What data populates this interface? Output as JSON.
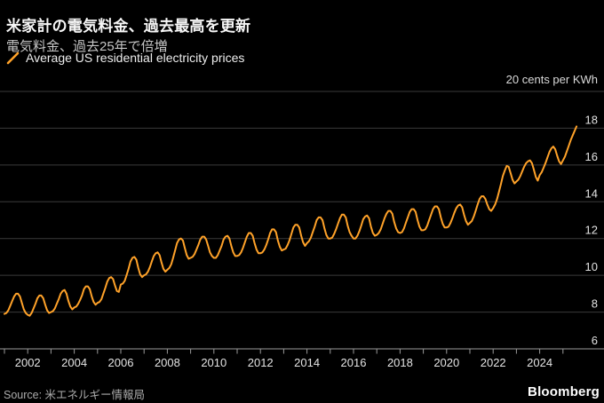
{
  "header": {
    "title": "米家計の電気料金、過去最高を更新",
    "subtitle": "電気料金、過去25年で倍増"
  },
  "legend": {
    "label": "Average US residential electricity prices"
  },
  "footer": {
    "source": "Source: 米エネルギー情報局",
    "brand": "Bloomberg"
  },
  "colors": {
    "background": "#000000",
    "line": "#FFA229",
    "grid": "#3a3a3a",
    "axis": "#9a9a9a",
    "tick_label": "#e3e3e3"
  },
  "chart_data": {
    "type": "line",
    "title": "米家計の電気料金、過去最高を更新",
    "subtitle": "電気料金、過去25年で倍増",
    "unit_label": "20 cents per KWh",
    "ylabel": "cents per KWh",
    "ylim": [
      6,
      20
    ],
    "yticks": [
      20,
      18,
      16,
      14,
      12,
      10,
      8,
      6
    ],
    "x_start_year": 2001,
    "x_end": 2025.67,
    "xticks_minor": {
      "from": 2001,
      "to": 2025,
      "step": 1
    },
    "xtick_labels": [
      "2002",
      "2004",
      "2006",
      "2008",
      "2010",
      "2012",
      "2014",
      "2016",
      "2018",
      "2020",
      "2022",
      "2024"
    ],
    "grid": "horizontal",
    "legend_position": "top-left",
    "series": [
      {
        "name": "Average US residential electricity prices",
        "color": "#FFA229",
        "frequency": "monthly",
        "start_year": 2001,
        "monthly_values": [
          [
            7.9,
            7.95,
            8.1,
            8.35,
            8.6,
            8.85,
            9.0,
            9.0,
            8.85,
            8.5,
            8.15,
            7.95
          ],
          [
            7.85,
            7.8,
            7.95,
            8.2,
            8.45,
            8.75,
            8.9,
            8.9,
            8.75,
            8.4,
            8.1,
            7.95
          ],
          [
            8.0,
            8.05,
            8.2,
            8.45,
            8.7,
            9.0,
            9.15,
            9.2,
            9.0,
            8.6,
            8.3,
            8.15
          ],
          [
            8.25,
            8.3,
            8.45,
            8.65,
            8.9,
            9.25,
            9.4,
            9.4,
            9.25,
            8.85,
            8.55,
            8.4
          ],
          [
            8.5,
            8.55,
            8.7,
            9.0,
            9.3,
            9.65,
            9.85,
            9.9,
            9.8,
            9.45,
            9.15,
            9.1
          ],
          [
            9.5,
            9.55,
            9.7,
            10.0,
            10.35,
            10.75,
            10.95,
            11.0,
            10.85,
            10.4,
            10.05,
            9.9
          ],
          [
            10.0,
            10.05,
            10.2,
            10.45,
            10.75,
            11.05,
            11.2,
            11.25,
            11.1,
            10.7,
            10.35,
            10.2
          ],
          [
            10.3,
            10.4,
            10.6,
            10.95,
            11.35,
            11.75,
            11.95,
            12.0,
            11.9,
            11.5,
            11.1,
            10.9
          ],
          [
            10.95,
            11.0,
            11.15,
            11.4,
            11.65,
            11.95,
            12.1,
            12.1,
            11.95,
            11.6,
            11.25,
            11.05
          ],
          [
            10.95,
            10.95,
            11.1,
            11.35,
            11.6,
            11.95,
            12.1,
            12.15,
            12.0,
            11.6,
            11.25,
            11.05
          ],
          [
            11.05,
            11.1,
            11.25,
            11.5,
            11.8,
            12.1,
            12.3,
            12.3,
            12.15,
            11.75,
            11.4,
            11.2
          ],
          [
            11.2,
            11.25,
            11.4,
            11.65,
            11.95,
            12.3,
            12.5,
            12.5,
            12.35,
            11.9,
            11.55,
            11.35
          ],
          [
            11.4,
            11.45,
            11.65,
            11.9,
            12.25,
            12.6,
            12.75,
            12.75,
            12.6,
            12.15,
            11.8,
            11.6
          ],
          [
            11.75,
            11.85,
            12.05,
            12.35,
            12.65,
            13.0,
            13.15,
            13.15,
            13.0,
            12.55,
            12.2,
            12.0
          ],
          [
            12.0,
            12.05,
            12.25,
            12.5,
            12.8,
            13.1,
            13.3,
            13.3,
            13.15,
            12.7,
            12.35,
            12.15
          ],
          [
            12.0,
            12.0,
            12.15,
            12.4,
            12.7,
            13.05,
            13.2,
            13.25,
            13.1,
            12.65,
            12.3,
            12.15
          ],
          [
            12.2,
            12.3,
            12.5,
            12.8,
            13.1,
            13.35,
            13.5,
            13.5,
            13.35,
            12.9,
            12.55,
            12.35
          ],
          [
            12.3,
            12.35,
            12.55,
            12.85,
            13.15,
            13.45,
            13.6,
            13.6,
            13.45,
            13.0,
            12.65,
            12.45
          ],
          [
            12.45,
            12.5,
            12.7,
            13.0,
            13.3,
            13.6,
            13.75,
            13.75,
            13.6,
            13.15,
            12.8,
            12.6
          ],
          [
            12.6,
            12.65,
            12.85,
            13.1,
            13.4,
            13.65,
            13.8,
            13.85,
            13.7,
            13.3,
            12.95,
            12.75
          ],
          [
            12.85,
            12.95,
            13.2,
            13.5,
            13.85,
            14.15,
            14.3,
            14.3,
            14.15,
            13.85,
            13.6,
            13.5
          ],
          [
            13.65,
            13.85,
            14.15,
            14.55,
            14.95,
            15.4,
            15.7,
            15.95,
            15.9,
            15.55,
            15.2,
            15.0
          ],
          [
            15.1,
            15.2,
            15.4,
            15.65,
            15.9,
            16.1,
            16.2,
            16.25,
            16.1,
            15.75,
            15.35,
            15.15
          ],
          [
            15.45,
            15.6,
            15.85,
            16.1,
            16.4,
            16.7,
            16.9,
            17.0,
            16.85,
            16.5,
            16.2,
            16.05
          ],
          [
            16.25,
            16.45,
            16.75,
            17.05,
            17.35,
            17.6,
            17.85,
            18.1
          ]
        ]
      }
    ]
  }
}
